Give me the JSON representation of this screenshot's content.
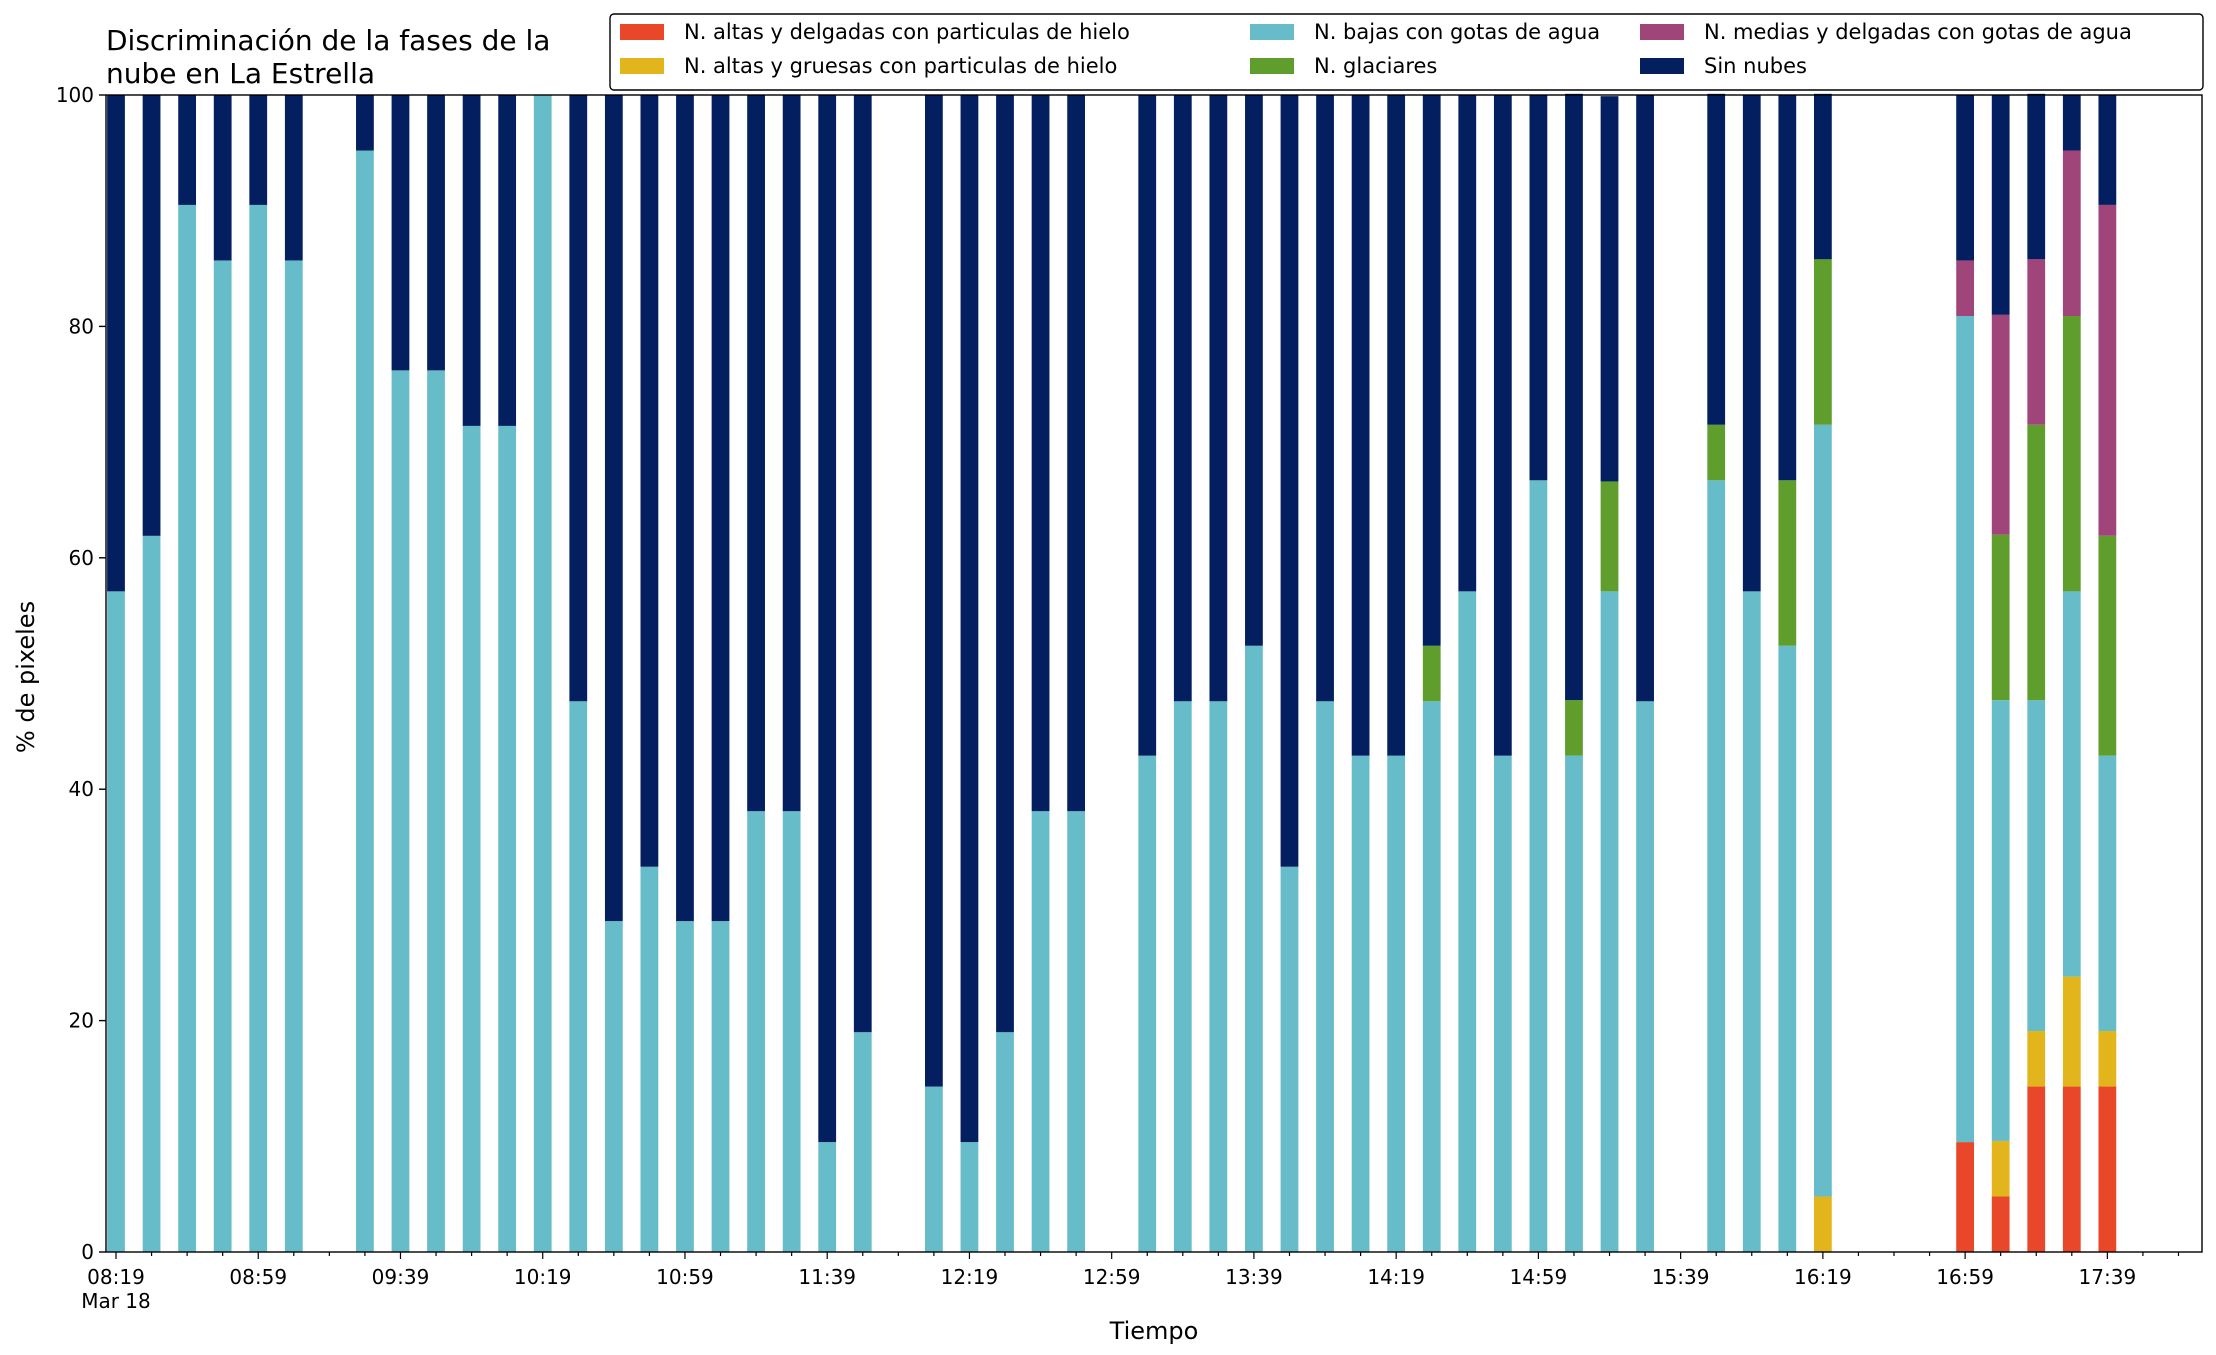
{
  "chart_data": {
    "type": "bar",
    "stacked": true,
    "title_lines": [
      "Discriminación de la fases de la",
      "nube en La Estrella"
    ],
    "xlabel": "Tiempo",
    "ylabel": "% de pixeles",
    "ylim": [
      0,
      100
    ],
    "yticks": [
      0,
      20,
      40,
      60,
      80,
      100
    ],
    "x_start_minute": 0,
    "x_end_minute": 585,
    "x_major_ticks": [
      {
        "minute": 0,
        "label": "08:19",
        "sublabel": "Mar 18"
      },
      {
        "minute": 40,
        "label": "08:59"
      },
      {
        "minute": 80,
        "label": "09:39"
      },
      {
        "minute": 120,
        "label": "10:19"
      },
      {
        "minute": 160,
        "label": "10:59"
      },
      {
        "minute": 200,
        "label": "11:39"
      },
      {
        "minute": 240,
        "label": "12:19"
      },
      {
        "minute": 280,
        "label": "12:59"
      },
      {
        "minute": 320,
        "label": "13:39"
      },
      {
        "minute": 360,
        "label": "14:19"
      },
      {
        "minute": 400,
        "label": "14:59"
      },
      {
        "minute": 440,
        "label": "15:39"
      },
      {
        "minute": 480,
        "label": "16:19"
      },
      {
        "minute": 520,
        "label": "16:59"
      },
      {
        "minute": 560,
        "label": "17:39"
      }
    ],
    "x_minor_step_minutes": 10,
    "bar_width_minutes": 5,
    "categories": [
      "08:19",
      "08:29",
      "08:39",
      "08:49",
      "08:59",
      "09:09",
      "09:29",
      "09:39",
      "09:49",
      "09:59",
      "10:09",
      "10:19",
      "10:29",
      "10:39",
      "10:49",
      "10:59",
      "11:09",
      "11:19",
      "11:29",
      "11:39",
      "11:49",
      "12:09",
      "12:19",
      "12:29",
      "12:39",
      "12:49",
      "13:09",
      "13:19",
      "13:29",
      "13:39",
      "13:49",
      "13:59",
      "14:09",
      "14:19",
      "14:29",
      "14:39",
      "14:49",
      "14:59",
      "15:09",
      "15:19",
      "15:29",
      "15:49",
      "15:59",
      "16:09",
      "16:19",
      "16:59",
      "17:09",
      "17:19",
      "17:29",
      "17:39"
    ],
    "x_minutes": [
      0,
      10,
      20,
      30,
      40,
      50,
      70,
      80,
      90,
      100,
      110,
      120,
      130,
      140,
      150,
      160,
      170,
      180,
      190,
      200,
      210,
      230,
      240,
      250,
      260,
      270,
      290,
      300,
      310,
      320,
      330,
      340,
      350,
      360,
      370,
      380,
      390,
      400,
      410,
      420,
      430,
      450,
      460,
      470,
      480,
      520,
      530,
      540,
      550,
      560
    ],
    "series": [
      {
        "name": "N. altas y delgadas con particulas de hielo",
        "color": "#e8472a",
        "values": [
          0,
          0,
          0,
          0,
          0,
          0,
          0,
          0,
          0,
          0,
          0,
          0,
          0,
          0,
          0,
          0,
          0,
          0,
          0,
          0,
          0,
          0,
          0,
          0,
          0,
          0,
          0,
          0,
          0,
          0,
          0,
          0,
          0,
          0,
          0,
          0,
          0,
          0,
          0,
          0,
          0,
          0,
          0,
          0,
          0,
          9.5,
          4.8,
          14.3,
          14.3,
          14.3
        ]
      },
      {
        "name": "N. altas y gruesas con particulas de hielo",
        "color": "#e3b51c",
        "values": [
          0,
          0,
          0,
          0,
          0,
          0,
          0,
          0,
          0,
          0,
          0,
          0,
          0,
          0,
          0,
          0,
          0,
          0,
          0,
          0,
          0,
          0,
          0,
          0,
          0,
          0,
          0,
          0,
          0,
          0,
          0,
          0,
          0,
          0,
          0,
          0,
          0,
          0,
          0,
          0,
          0,
          0,
          0,
          0,
          4.8,
          0,
          4.8,
          4.8,
          9.5,
          4.8
        ]
      },
      {
        "name": "N. bajas con gotas de agua",
        "color": "#66bdc9",
        "values": [
          57.1,
          61.9,
          90.5,
          85.7,
          90.5,
          85.7,
          95.2,
          76.2,
          76.2,
          71.4,
          71.4,
          100,
          47.6,
          28.6,
          33.3,
          28.6,
          28.6,
          38.1,
          38.1,
          9.5,
          19.0,
          14.3,
          9.5,
          19.0,
          38.1,
          38.1,
          42.9,
          47.6,
          47.6,
          52.4,
          33.3,
          47.6,
          42.9,
          42.9,
          47.6,
          57.1,
          42.9,
          66.7,
          42.9,
          57.1,
          47.6,
          66.7,
          57.1,
          52.4,
          66.7,
          71.4,
          38.1,
          28.6,
          33.3,
          23.8
        ]
      },
      {
        "name": "N. glaciares",
        "color": "#5f9e2d",
        "values": [
          0,
          0,
          0,
          0,
          0,
          0,
          0,
          0,
          0,
          0,
          0,
          0,
          0,
          0,
          0,
          0,
          0,
          0,
          0,
          0,
          0,
          0,
          0,
          0,
          0,
          0,
          0,
          0,
          0,
          0,
          0,
          0,
          0,
          0,
          4.8,
          0,
          0,
          0,
          4.8,
          9.5,
          0,
          4.8,
          0,
          14.3,
          14.3,
          0,
          14.3,
          23.8,
          23.8,
          19.0
        ]
      },
      {
        "name": "N. medias y delgadas con gotas de agua",
        "color": "#a0457a",
        "values": [
          0,
          0,
          0,
          0,
          0,
          0,
          0,
          0,
          0,
          0,
          0,
          0,
          0,
          0,
          0,
          0,
          0,
          0,
          0,
          0,
          0,
          0,
          0,
          0,
          0,
          0,
          0,
          0,
          0,
          0,
          0,
          0,
          0,
          0,
          0,
          0,
          0,
          0,
          0,
          0,
          0,
          0,
          0,
          0,
          0,
          4.8,
          19.0,
          14.3,
          14.3,
          28.6
        ]
      },
      {
        "name": "Sin nubes",
        "color": "#031f5f",
        "values": [
          42.9,
          38.1,
          9.5,
          14.3,
          9.5,
          14.3,
          4.8,
          23.8,
          23.8,
          28.6,
          28.6,
          0,
          52.4,
          71.4,
          66.7,
          71.4,
          71.4,
          61.9,
          61.9,
          90.5,
          81.0,
          85.7,
          90.5,
          81.0,
          61.9,
          61.9,
          57.1,
          52.4,
          52.4,
          47.6,
          66.7,
          52.4,
          57.1,
          57.1,
          47.6,
          42.9,
          57.1,
          33.3,
          52.4,
          33.3,
          52.4,
          28.6,
          42.9,
          33.3,
          14.3,
          14.3,
          19.0,
          14.3,
          4.8,
          9.5
        ]
      }
    ],
    "legend": {
      "placement": "top-right",
      "columns": [
        [
          "N. altas y delgadas con particulas de hielo",
          "N. altas y gruesas con particulas de hielo"
        ],
        [
          "N. bajas con gotas de agua",
          "N. glaciares"
        ],
        [
          "N. medias y delgadas con gotas de agua",
          "Sin nubes"
        ]
      ]
    },
    "grid": false
  }
}
